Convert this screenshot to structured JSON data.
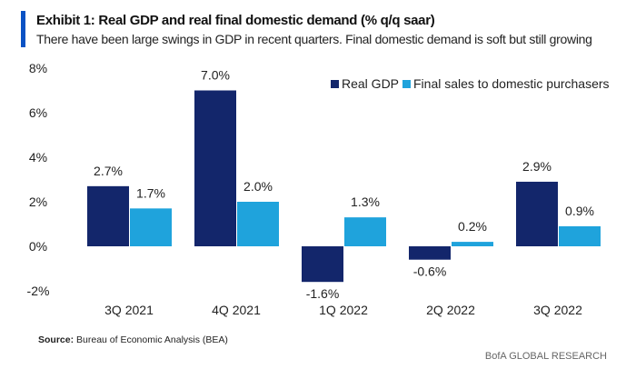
{
  "header": {
    "title": "Exhibit 1: Real GDP and real final domestic demand (% q/q saar)",
    "subtitle": "There have been large swings in GDP in recent quarters. Final domestic demand is soft but still growing"
  },
  "footer": {
    "source_label": "Source:",
    "source_text": "Bureau of Economic Analysis (BEA)",
    "brand": "BofA GLOBAL RESEARCH"
  },
  "chart_data": {
    "type": "bar",
    "title": "Exhibit 1: Real GDP and real final domestic demand (% q/q saar)",
    "categories": [
      "3Q 2021",
      "4Q 2021",
      "1Q 2022",
      "2Q 2022",
      "3Q 2022"
    ],
    "series": [
      {
        "name": "Real GDP",
        "color": "#13266b",
        "values": [
          2.7,
          7.0,
          -1.6,
          -0.6,
          2.9
        ],
        "labels": [
          "2.7%",
          "7.0%",
          "-1.6%",
          "-0.6%",
          "2.9%"
        ]
      },
      {
        "name": "Final sales to domestic purchasers",
        "color": "#1fa3dc",
        "values": [
          1.7,
          2.0,
          1.3,
          0.2,
          0.9
        ],
        "labels": [
          "1.7%",
          "2.0%",
          "1.3%",
          "0.2%",
          "0.9%"
        ]
      }
    ],
    "ylim": [
      -2,
      8
    ],
    "yticks": [
      8,
      6,
      4,
      2,
      0,
      -2
    ],
    "ytick_labels": [
      "8%",
      "6%",
      "4%",
      "2%",
      "0%",
      "-2%"
    ],
    "grid": false,
    "legend_position": "top-right",
    "xlabel": "",
    "ylabel": ""
  }
}
